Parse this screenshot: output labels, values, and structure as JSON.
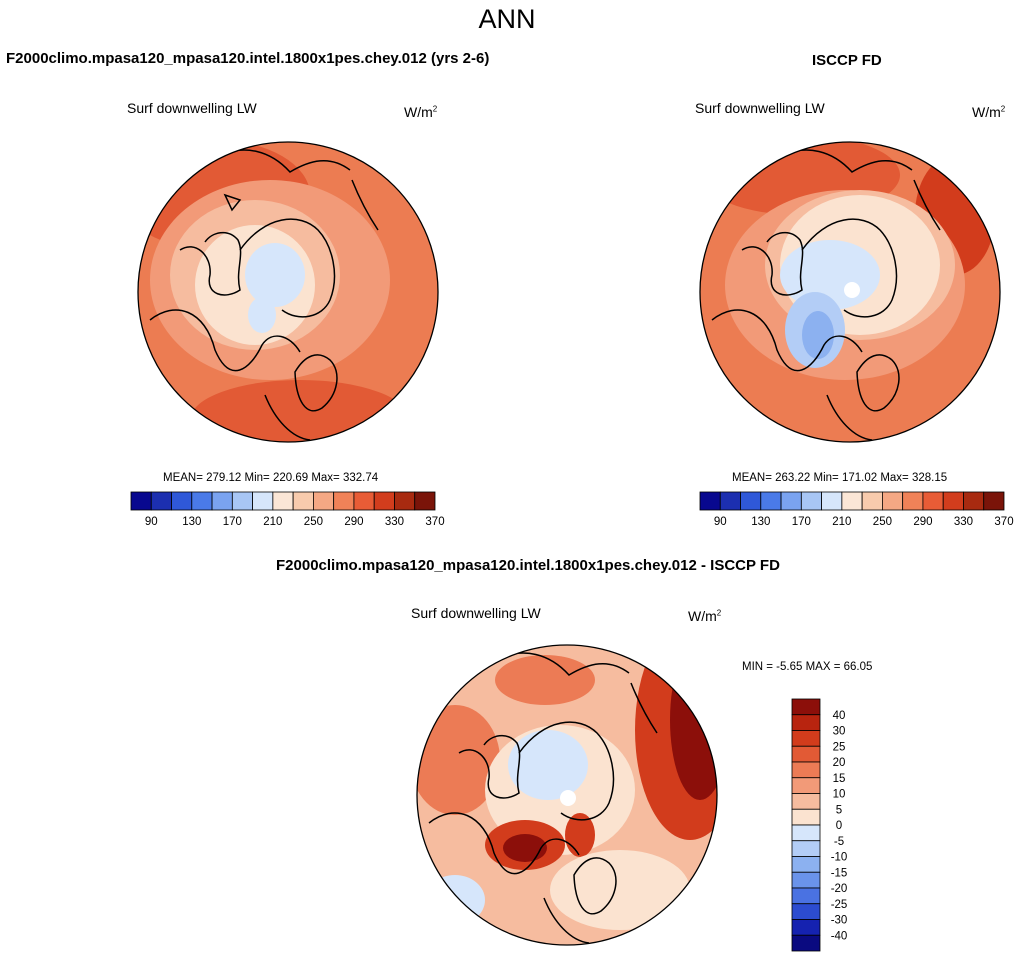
{
  "header": {
    "season": "ANN"
  },
  "panels": [
    {
      "title": "F2000climo.mpasa120_mpasa120.intel.1800x1pes.chey.012 (yrs 2-6)",
      "variable": "Surf downwelling LW",
      "units": "W/m",
      "units_sup": "2",
      "stats": "MEAN= 279.12  Min= 220.69  Max= 332.74"
    },
    {
      "title": "ISCCP FD",
      "variable": "Surf downwelling LW",
      "units": "W/m",
      "units_sup": "2",
      "stats": "MEAN= 263.22  Min= 171.02  Max= 328.15"
    },
    {
      "title": "F2000climo.mpasa120_mpasa120.intel.1800x1pes.chey.012 - ISCCP FD",
      "variable": "Surf downwelling LW",
      "units": "W/m",
      "units_sup": "2",
      "stats": "MIN =  -5.65 MAX =  66.05"
    }
  ],
  "chart_data": [
    {
      "type": "heatmap",
      "projection": "north-polar-stereographic",
      "title": "F2000climo.mpasa120_mpasa120.intel.1800x1pes.chey.012 (yrs 2-6)",
      "variable": "Surf downwelling LW",
      "units": "W/m^2",
      "mean": 279.12,
      "min": 220.69,
      "max": 332.74,
      "colorbar": {
        "orientation": "horizontal",
        "tick_labels": [
          "90",
          "130",
          "170",
          "210",
          "250",
          "290",
          "330",
          "370"
        ],
        "colors": [
          "#08088f",
          "#1c2fb0",
          "#2f58d8",
          "#4a7ae8",
          "#7aa3f0",
          "#a8c6f5",
          "#d6e6fb",
          "#fbe6d6",
          "#f8cbad",
          "#f5a884",
          "#f08258",
          "#e85c36",
          "#d23d1d",
          "#a82a10",
          "#7a1409"
        ]
      }
    },
    {
      "type": "heatmap",
      "projection": "north-polar-stereographic",
      "title": "ISCCP FD",
      "variable": "Surf downwelling LW",
      "units": "W/m^2",
      "mean": 263.22,
      "min": 171.02,
      "max": 328.15,
      "colorbar": {
        "orientation": "horizontal",
        "tick_labels": [
          "90",
          "130",
          "170",
          "210",
          "250",
          "290",
          "330",
          "370"
        ],
        "colors": [
          "#08088f",
          "#1c2fb0",
          "#2f58d8",
          "#4a7ae8",
          "#7aa3f0",
          "#a8c6f5",
          "#d6e6fb",
          "#fbe6d6",
          "#f8cbad",
          "#f5a884",
          "#f08258",
          "#e85c36",
          "#d23d1d",
          "#a82a10",
          "#7a1409"
        ]
      }
    },
    {
      "type": "heatmap",
      "projection": "north-polar-stereographic",
      "title": "F2000climo.mpasa120_mpasa120.intel.1800x1pes.chey.012 - ISCCP FD",
      "variable": "Surf downwelling LW",
      "units": "W/m^2",
      "min": -5.65,
      "max": 66.05,
      "colorbar": {
        "orientation": "vertical",
        "tick_labels": [
          "40",
          "30",
          "25",
          "20",
          "15",
          "10",
          "5",
          "0",
          "-5",
          "-10",
          "-15",
          "-20",
          "-25",
          "-30",
          "-40"
        ],
        "colors": [
          "#8c0f0a",
          "#b8240f",
          "#d23c1c",
          "#e25a35",
          "#ec7b55",
          "#f29a78",
          "#f6bc9f",
          "#fbe3d0",
          "#d6e6fb",
          "#b3cdf6",
          "#8cb1f0",
          "#6a93ea",
          "#4a72e2",
          "#2c4cd0",
          "#1522b0",
          "#0a0a80"
        ]
      }
    }
  ]
}
